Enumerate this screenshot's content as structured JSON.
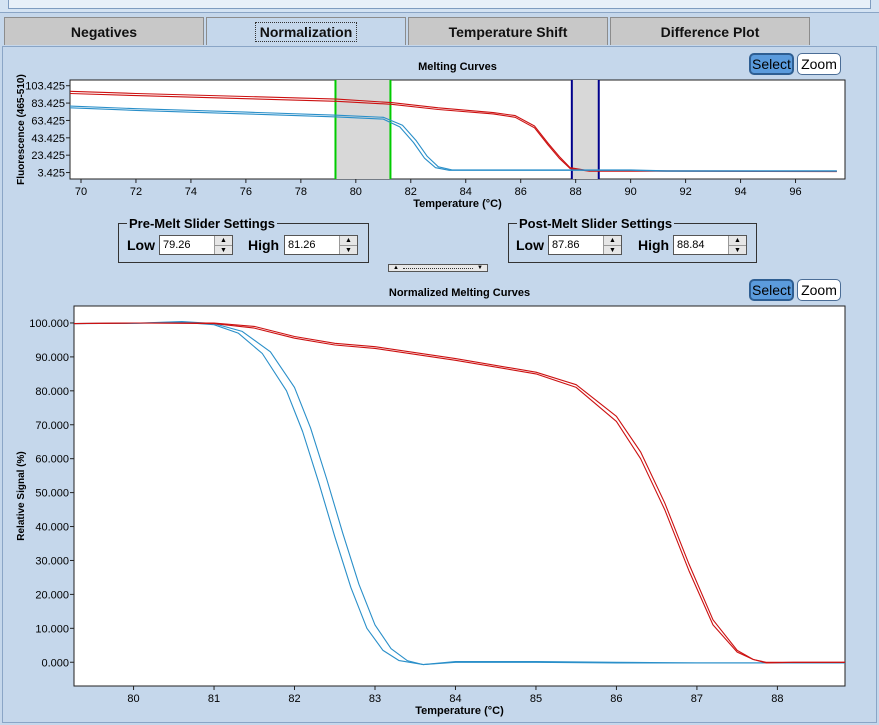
{
  "tabs": [
    {
      "label": "Negatives"
    },
    {
      "label": "Normalization"
    },
    {
      "label": "Temperature Shift"
    },
    {
      "label": "Difference Plot"
    }
  ],
  "active_tab": 1,
  "buttons": {
    "select": "Select",
    "zoom": "Zoom"
  },
  "pre_melt": {
    "title": "Pre-Melt Slider Settings",
    "low_label": "Low",
    "low_value": "79.26",
    "high_label": "High",
    "high_value": "81.26"
  },
  "post_melt": {
    "title": "Post-Melt Slider Settings",
    "low_label": "Low",
    "low_value": "87.86",
    "high_label": "High",
    "high_value": "88.84"
  },
  "colors": {
    "red": "#cc1111",
    "blue": "#2a8fc9",
    "pre_slider": "#00cc00",
    "post_slider": "#00008b",
    "slider_band": "#d8d8d8"
  },
  "chart_data": [
    {
      "type": "line",
      "title": "Melting Curves",
      "xlabel": "Temperature (°C)",
      "ylabel": "Fluorescence (465-510)",
      "xlim": [
        69.6,
        97.8
      ],
      "ylim": [
        -4,
        110
      ],
      "xticks": [
        70,
        72,
        74,
        76,
        78,
        80,
        82,
        84,
        86,
        88,
        90,
        92,
        94,
        96
      ],
      "yticks": [
        3.425,
        23.425,
        43.425,
        63.425,
        83.425,
        103.425
      ],
      "ytick_labels": [
        "3.425",
        "23.425",
        "43.425",
        "63.425",
        "83.425",
        "103.425"
      ],
      "pre_melt_range": [
        79.26,
        81.26
      ],
      "post_melt_range": [
        87.86,
        88.84
      ],
      "series": [
        {
          "color": "red",
          "x": [
            69.6,
            72,
            76,
            79.3,
            81.3,
            83,
            85,
            85.8,
            86.5,
            87.0,
            87.4,
            87.8,
            88.5,
            91,
            97.5
          ],
          "y": [
            94.5,
            92.0,
            88.5,
            85.5,
            82.0,
            76.0,
            71.0,
            67.0,
            55.0,
            35.0,
            20.0,
            8.0,
            5.0,
            5.0,
            4.5
          ]
        },
        {
          "color": "red",
          "x": [
            69.6,
            72,
            76,
            79.3,
            81.3,
            83,
            85,
            85.8,
            86.5,
            87.0,
            87.4,
            87.8,
            88.5,
            91,
            97.5
          ],
          "y": [
            97.0,
            94.5,
            91.0,
            88.0,
            84.0,
            78.0,
            72.5,
            69.0,
            57.0,
            37.0,
            22.0,
            9.0,
            5.5,
            5.5,
            5.0
          ]
        },
        {
          "color": "blue",
          "x": [
            69.6,
            72,
            76,
            79.3,
            81.0,
            81.6,
            82.1,
            82.5,
            82.9,
            83.4,
            85,
            90,
            91.3,
            97.5
          ],
          "y": [
            78.0,
            75.0,
            71.0,
            67.5,
            65.0,
            56.0,
            38.0,
            20.0,
            9.0,
            6.0,
            6.0,
            6.0,
            5.0,
            5.0
          ]
        },
        {
          "color": "blue",
          "x": [
            69.6,
            72,
            76,
            79.3,
            81.0,
            81.7,
            82.2,
            82.6,
            83.0,
            83.5,
            85,
            90,
            91.3,
            97.5
          ],
          "y": [
            80.0,
            77.0,
            73.0,
            69.5,
            67.0,
            58.0,
            40.0,
            22.0,
            10.0,
            6.5,
            6.5,
            6.5,
            5.5,
            5.5
          ]
        }
      ]
    },
    {
      "type": "line",
      "title": "Normalized Melting Curves",
      "xlabel": "Temperature (°C)",
      "ylabel": "Relative Signal (%)",
      "xlim": [
        79.26,
        88.84
      ],
      "ylim": [
        -7,
        105
      ],
      "xticks": [
        80,
        81,
        82,
        83,
        84,
        85,
        86,
        87,
        88
      ],
      "yticks": [
        0,
        10,
        20,
        30,
        40,
        50,
        60,
        70,
        80,
        90,
        100
      ],
      "ytick_labels": [
        "0.000",
        "10.000",
        "20.000",
        "30.000",
        "40.000",
        "50.000",
        "60.000",
        "70.000",
        "80.000",
        "90.000",
        "100.000"
      ],
      "series": [
        {
          "color": "blue",
          "x": [
            79.26,
            80.0,
            80.6,
            81.0,
            81.3,
            81.6,
            81.9,
            82.1,
            82.3,
            82.5,
            82.7,
            82.9,
            83.1,
            83.3,
            83.6,
            84.0,
            85.0,
            86.0,
            87.0,
            88.0,
            88.84
          ],
          "y": [
            99.8,
            99.9,
            100.2,
            99.5,
            97.0,
            91.0,
            80.0,
            68.0,
            53.0,
            37.0,
            22.0,
            10.0,
            3.5,
            0.5,
            -0.7,
            0.0,
            0.0,
            -0.2,
            -0.2,
            -0.2,
            -0.2
          ]
        },
        {
          "color": "blue",
          "x": [
            79.26,
            80.0,
            80.6,
            81.0,
            81.35,
            81.7,
            82.0,
            82.2,
            82.4,
            82.6,
            82.8,
            83.0,
            83.2,
            83.4,
            83.6,
            84.0,
            85.0,
            86.0,
            87.0,
            88.0,
            88.84
          ],
          "y": [
            99.8,
            99.9,
            100.4,
            99.8,
            97.5,
            91.5,
            81.0,
            69.0,
            54.0,
            38.0,
            23.0,
            11.0,
            4.0,
            0.5,
            -0.7,
            0.2,
            0.2,
            0.0,
            -0.2,
            -0.2,
            -0.2
          ]
        },
        {
          "color": "red",
          "x": [
            79.26,
            80.0,
            81.0,
            81.5,
            82.0,
            82.5,
            83.0,
            84.0,
            85.0,
            85.5,
            86.0,
            86.3,
            86.6,
            86.9,
            87.2,
            87.5,
            87.7,
            87.86,
            88.2,
            88.84
          ],
          "y": [
            99.8,
            100.0,
            99.8,
            98.5,
            95.5,
            93.5,
            92.5,
            89.0,
            85.0,
            81.0,
            71.0,
            60.0,
            45.0,
            27.0,
            11.0,
            3.0,
            0.8,
            0.0,
            0.0,
            0.0
          ]
        },
        {
          "color": "red",
          "x": [
            79.26,
            80.0,
            81.0,
            81.5,
            82.0,
            82.5,
            83.0,
            84.0,
            85.0,
            85.5,
            86.0,
            86.3,
            86.6,
            86.9,
            87.2,
            87.5,
            87.7,
            87.86,
            88.2,
            88.84
          ],
          "y": [
            99.8,
            100.0,
            100.0,
            99.0,
            96.0,
            94.0,
            93.0,
            89.5,
            85.5,
            81.8,
            72.5,
            62.0,
            47.0,
            29.0,
            12.5,
            3.5,
            0.8,
            -0.2,
            0.0,
            0.0
          ]
        }
      ]
    }
  ]
}
